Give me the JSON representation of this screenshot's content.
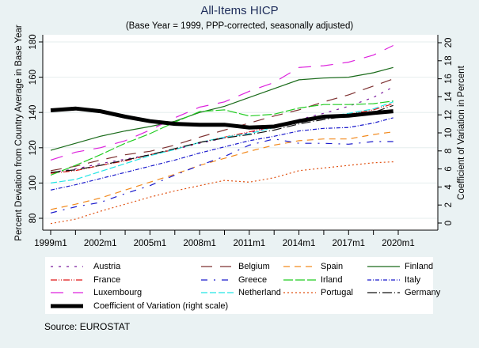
{
  "chart_data": {
    "type": "line",
    "title": "All-Items HICP",
    "subtitle": "(Base Year = 1999, PPP-corrected, seasonally adjusted)",
    "ylabel": "Percent Deviation from Country Average in Base Year",
    "y2label": "Coefficient of Variation in Percent",
    "xlabel": "",
    "x_ticks": [
      "1999m1",
      "2002m1",
      "2005m1",
      "2008m1",
      "2011m1",
      "2014m1",
      "2017m1",
      "2020m1"
    ],
    "x_tick_years": [
      1999,
      2002,
      2005,
      2008,
      2011,
      2014,
      2017,
      2020
    ],
    "xlim": [
      1998.6,
      2021.75
    ],
    "ylim": [
      76,
      184
    ],
    "y_ticks": [
      80,
      100,
      120,
      140,
      160,
      180
    ],
    "y2lim": [
      -1,
      21.6
    ],
    "y2_ticks": [
      0,
      2,
      4,
      6,
      8,
      10,
      12,
      14,
      16,
      18,
      20
    ],
    "grid": true,
    "legend_position": "bottom",
    "x": [
      1999,
      2000.5,
      2002,
      2003.5,
      2005,
      2006.5,
      2008,
      2009.5,
      2011,
      2012.5,
      2014,
      2015.5,
      2017,
      2018.5,
      2019.7
    ],
    "series": [
      {
        "name": "Austria",
        "color": "#7b1a9e",
        "dash": "3,7",
        "axis": "left",
        "values": [
          106,
          108,
          111,
          113.5,
          116,
          119,
          122.5,
          125.5,
          128.5,
          132,
          136,
          139.5,
          143.5,
          148.5,
          154.5
        ]
      },
      {
        "name": "Belgium",
        "color": "#7d3030",
        "dash": "14,10",
        "axis": "left",
        "values": [
          107,
          109.5,
          113,
          116,
          118,
          121.5,
          126,
          130,
          134,
          138,
          141.5,
          146,
          150,
          155,
          159
        ]
      },
      {
        "name": "Spain",
        "color": "#f28a1e",
        "dash": "8,6",
        "axis": "left",
        "values": [
          85,
          88,
          91.5,
          96,
          100.5,
          105,
          110,
          114,
          118,
          121.5,
          124,
          125,
          125,
          127.5,
          129
        ]
      },
      {
        "name": "Finland",
        "color": "#1a6b1a",
        "dash": "",
        "axis": "left",
        "values": [
          118.5,
          122.5,
          126.5,
          129.5,
          132,
          135,
          140,
          143.5,
          148.5,
          153.5,
          158.5,
          159.5,
          160,
          162.5,
          165.5
        ]
      },
      {
        "name": "France",
        "color": "#e01818",
        "dash": "8,2,1,2,1,2",
        "axis": "left",
        "values": [
          105.5,
          107,
          110,
          112.5,
          116,
          119,
          123,
          126,
          129,
          132,
          135.5,
          138,
          139,
          141.5,
          145
        ]
      },
      {
        "name": "Greece",
        "color": "#1a1acc",
        "dash": "8,8,2,8",
        "axis": "left",
        "values": [
          83,
          86.5,
          89,
          94,
          98.5,
          104.5,
          110,
          115,
          121.5,
          125,
          122.5,
          122.5,
          122,
          123.5,
          123.5
        ]
      },
      {
        "name": "Irland",
        "color": "#22cc22",
        "dash": "12,3",
        "axis": "left",
        "values": [
          104.5,
          110,
          116,
          122.5,
          128,
          134.5,
          140.5,
          141.5,
          138,
          139,
          142.5,
          144.5,
          144.5,
          145,
          146.5
        ]
      },
      {
        "name": "Italy",
        "color": "#1a1acc",
        "dash": "5,2,1,2",
        "axis": "left",
        "values": [
          96,
          99,
          102.5,
          106,
          109.5,
          113,
          117,
          120.5,
          124,
          126.5,
          129.5,
          131,
          131.5,
          134,
          137
        ]
      },
      {
        "name": "Luxembourg",
        "color": "#dd22dd",
        "dash": "16,12",
        "axis": "left",
        "values": [
          113,
          117.5,
          120,
          124,
          130,
          137,
          143,
          146,
          152,
          157,
          165.5,
          166.5,
          168.5,
          172.5,
          178
        ]
      },
      {
        "name": "Netherland",
        "color": "#22e5e5",
        "dash": "8,3",
        "axis": "left",
        "values": [
          100,
          102,
          106.5,
          111,
          115.5,
          119,
          123,
          126,
          128,
          131.5,
          135.5,
          137.5,
          139.5,
          142,
          146
        ]
      },
      {
        "name": "Portugal",
        "color": "#e05010",
        "dash": "2,3",
        "axis": "left",
        "values": [
          77,
          79.5,
          84,
          88,
          92,
          95.5,
          98.5,
          101.5,
          100.5,
          103,
          107,
          108.5,
          110,
          111.5,
          112
        ]
      },
      {
        "name": "Germany",
        "color": "#111111",
        "dash": "12,3,1,3",
        "axis": "left",
        "values": [
          106,
          107.5,
          110,
          113,
          116,
          119.5,
          123,
          125.5,
          127.5,
          130,
          133.5,
          136,
          138,
          140,
          144
        ]
      },
      {
        "name": "Coefficient of Variation (right scale)",
        "color": "#000000",
        "dash": "",
        "axis": "right",
        "values": [
          12.5,
          12.7,
          12.4,
          11.8,
          11.3,
          11.0,
          10.9,
          10.9,
          10.6,
          10.7,
          11.3,
          11.8,
          11.9,
          12.2,
          12.4
        ]
      }
    ]
  },
  "legend": {
    "items": [
      {
        "label": "Austria"
      },
      {
        "label": "Belgium"
      },
      {
        "label": "Spain"
      },
      {
        "label": "Finland"
      },
      {
        "label": "France"
      },
      {
        "label": "Greece"
      },
      {
        "label": "Irland"
      },
      {
        "label": "Italy"
      },
      {
        "label": "Luxembourg"
      },
      {
        "label": "Netherland"
      },
      {
        "label": "Portugal"
      },
      {
        "label": "Germany"
      },
      {
        "label": "Coefficient of Variation (right scale)"
      }
    ]
  },
  "source": "Source: EUROSTAT"
}
